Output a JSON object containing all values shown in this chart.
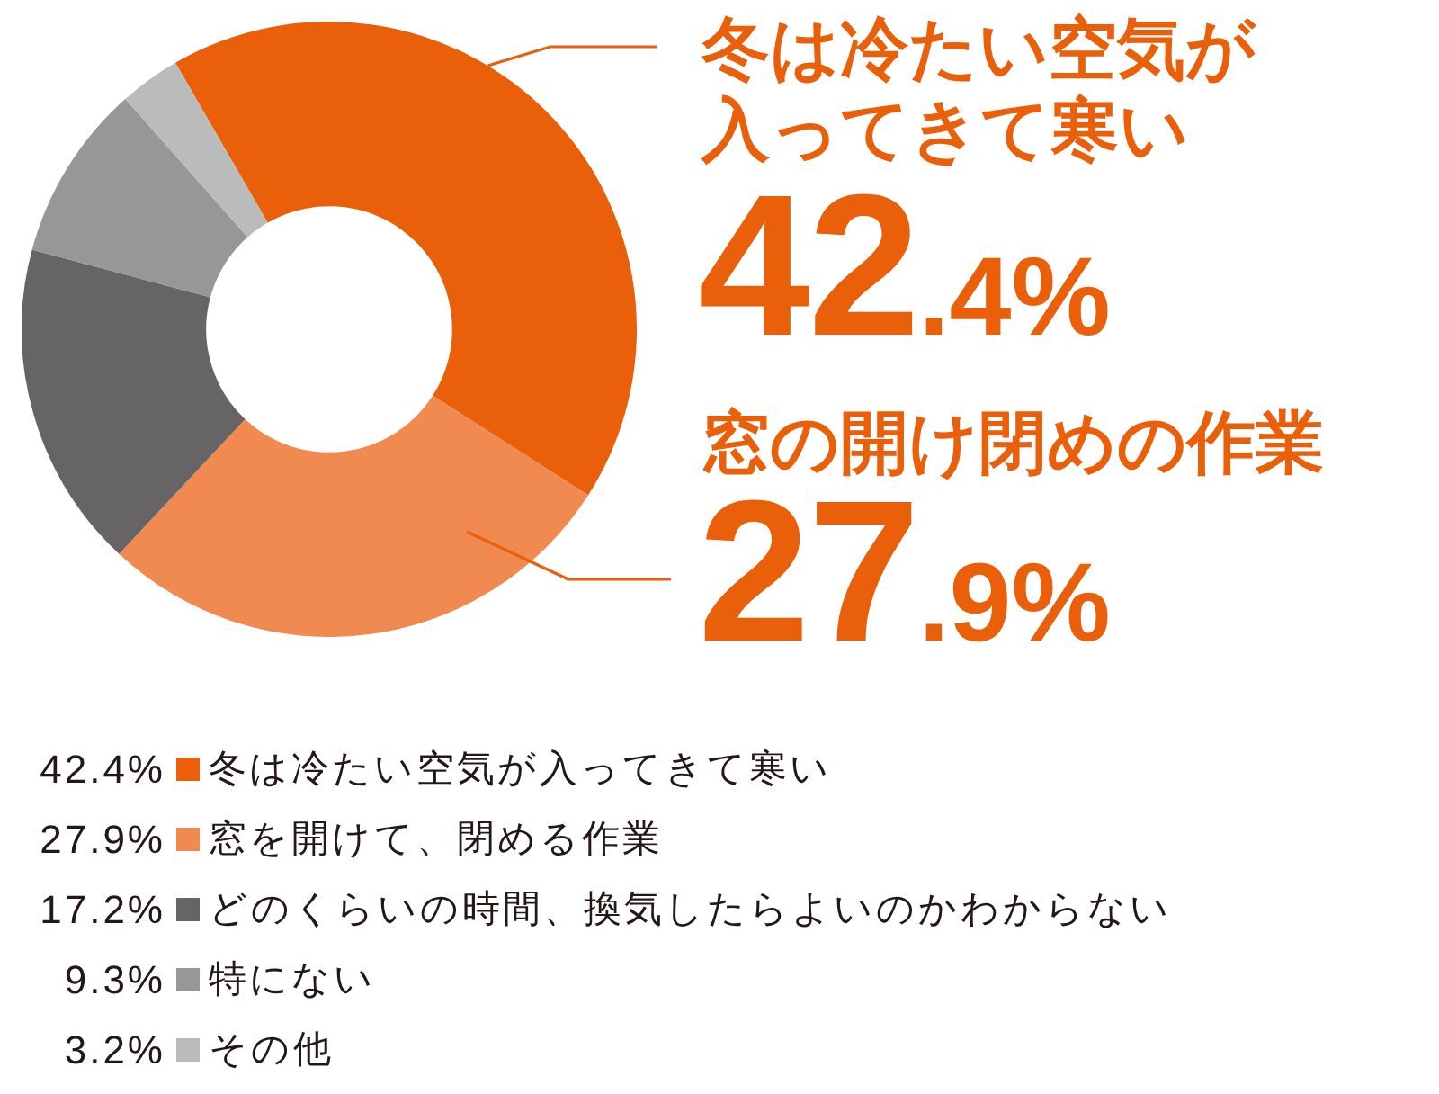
{
  "chart_data": {
    "type": "donut",
    "categories": [
      "冬は冷たい空気が入ってきて寒い",
      "窓を開けて、閉める作業",
      "どのくらいの時間、換気したらよいのかわからない",
      "特にない",
      "その他"
    ],
    "values": [
      42.4,
      27.9,
      17.2,
      9.3,
      3.2
    ],
    "colors": [
      "#e95f0a",
      "#f08a50",
      "#666465",
      "#969897",
      "#babcbb"
    ],
    "value_labels": [
      "42.4%",
      "27.9%",
      "17.2%",
      "9.3%",
      "3.2%"
    ],
    "legend": "bottom right",
    "annotations": [
      "冬は冷たい空気が入ってきて寒い",
      "42.4%",
      "窓の開け閉めの作業",
      "27.9%"
    ]
  }
}
